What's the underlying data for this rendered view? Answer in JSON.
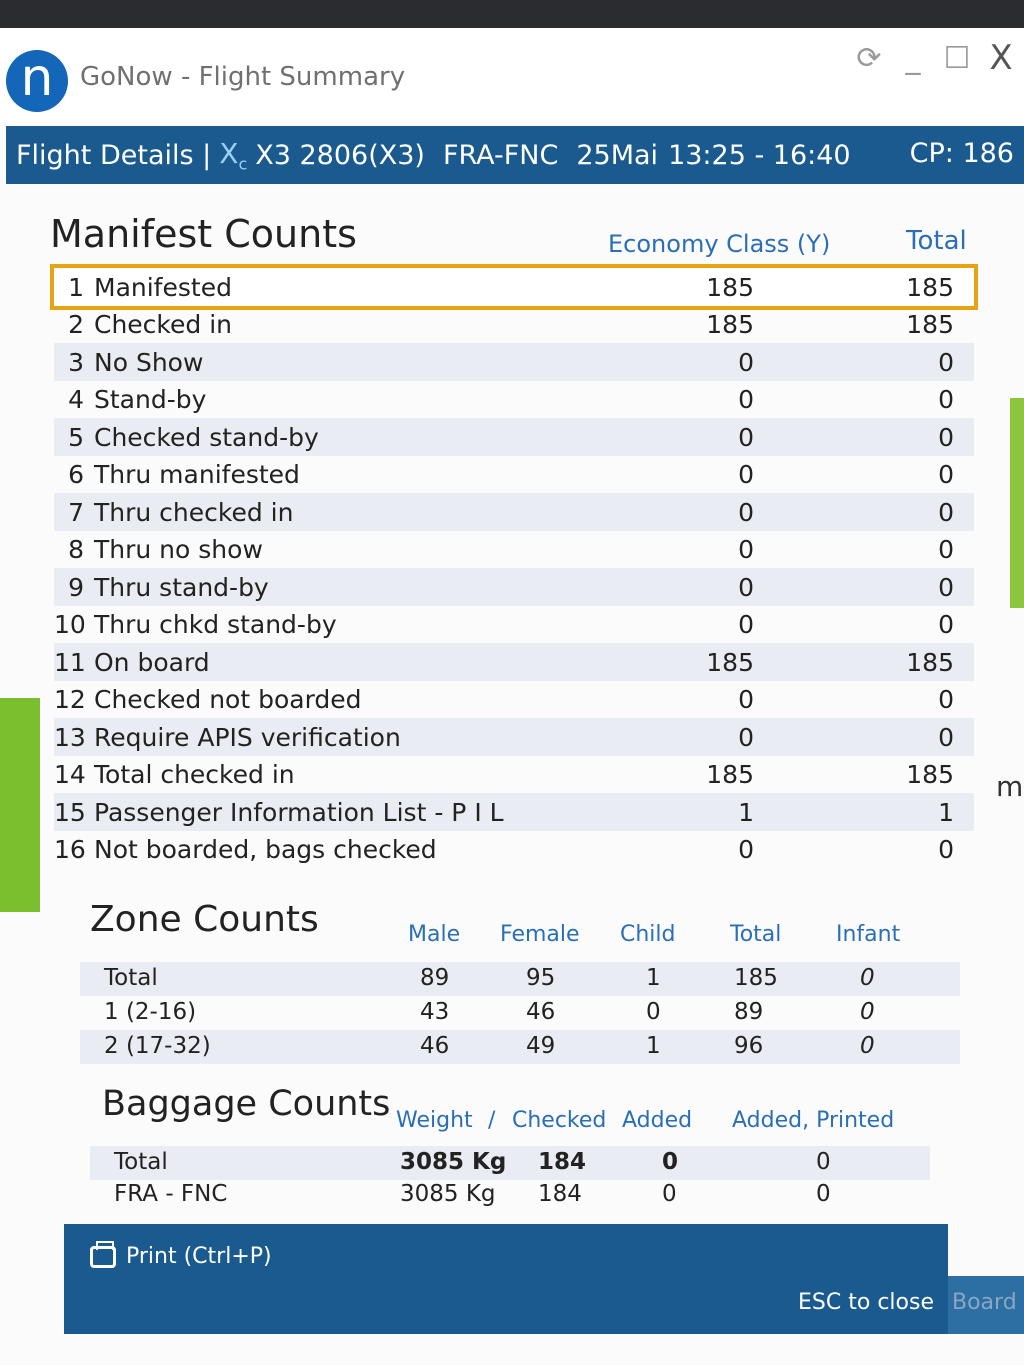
{
  "window": {
    "logo_letter": "n",
    "title": "GoNow - Flight Summary",
    "controls": {
      "refresh": "⟳",
      "minimize": "_",
      "maximize": "☐",
      "close": "X"
    }
  },
  "header": {
    "section": "Flight Details |",
    "airline_icon": "X",
    "airline_sub": "c",
    "flight": "X3 2806(X3)",
    "route": "FRA-FNC",
    "date": "25Mai",
    "time": "13:25 - 16:40",
    "cp": "CP: 186"
  },
  "manifest": {
    "title": "Manifest Counts",
    "col_economy": "Economy Class (Y)",
    "col_total": "Total",
    "rows": [
      {
        "num": "1",
        "label": "Manifested",
        "economy": "185",
        "total": "185"
      },
      {
        "num": "2",
        "label": "Checked in",
        "economy": "185",
        "total": "185"
      },
      {
        "num": "3",
        "label": "No Show",
        "economy": "0",
        "total": "0"
      },
      {
        "num": "4",
        "label": "Stand-by",
        "economy": "0",
        "total": "0"
      },
      {
        "num": "5",
        "label": "Checked stand-by",
        "economy": "0",
        "total": "0"
      },
      {
        "num": "6",
        "label": "Thru manifested",
        "economy": "0",
        "total": "0"
      },
      {
        "num": "7",
        "label": "Thru checked in",
        "economy": "0",
        "total": "0"
      },
      {
        "num": "8",
        "label": "Thru no show",
        "economy": "0",
        "total": "0"
      },
      {
        "num": "9",
        "label": "Thru stand-by",
        "economy": "0",
        "total": "0"
      },
      {
        "num": "10",
        "label": "Thru chkd stand-by",
        "economy": "0",
        "total": "0"
      },
      {
        "num": "11",
        "label": "On board",
        "economy": "185",
        "total": "185"
      },
      {
        "num": "12",
        "label": "Checked not boarded",
        "economy": "0",
        "total": "0"
      },
      {
        "num": "13",
        "label": "Require APIS verification",
        "economy": "0",
        "total": "0"
      },
      {
        "num": "14",
        "label": "Total checked in",
        "economy": "185",
        "total": "185"
      },
      {
        "num": "15",
        "label": "Passenger Information List - P I L",
        "economy": "1",
        "total": "1"
      },
      {
        "num": "16",
        "label": "Not boarded, bags checked",
        "economy": "0",
        "total": "0"
      }
    ]
  },
  "zone": {
    "title": "Zone Counts",
    "cols": [
      "Male",
      "Female",
      "Child",
      "Total",
      "Infant"
    ],
    "rows": [
      {
        "label": "Total",
        "male": "89",
        "female": "95",
        "child": "1",
        "total": "185",
        "infant": "0"
      },
      {
        "label": "1 (2-16)",
        "male": "43",
        "female": "46",
        "child": "0",
        "total": "89",
        "infant": "0"
      },
      {
        "label": "2 (17-32)",
        "male": "46",
        "female": "49",
        "child": "1",
        "total": "96",
        "infant": "0"
      }
    ]
  },
  "baggage": {
    "title": "Baggage Counts",
    "cols": [
      "Weight",
      "/",
      "Checked",
      "Added",
      "Added, Printed"
    ],
    "rows": [
      {
        "label": "Total",
        "weight": "3085 Kg",
        "checked": "184",
        "added": "0",
        "printed": "0"
      },
      {
        "label": "FRA - FNC",
        "weight": "3085 Kg",
        "checked": "184",
        "added": "0",
        "printed": "0"
      }
    ]
  },
  "footer": {
    "print": "Print (Ctrl+P)",
    "esc": "ESC to close",
    "board": "Board"
  },
  "background": {
    "right_letter": "m"
  }
}
